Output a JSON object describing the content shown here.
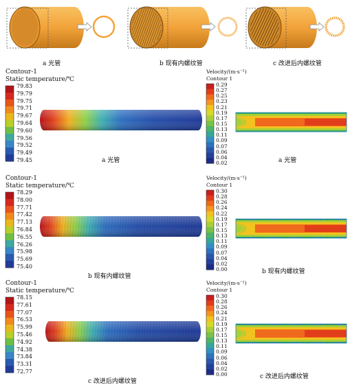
{
  "top_row": {
    "captions": [
      "a 光管",
      "b 现有内螺纹管",
      "c 改进后内螺纹管"
    ]
  },
  "panels": [
    {
      "temp_legend": {
        "title_line1": "Contour-1",
        "title_line2": "Static temperature/℃",
        "ticks": [
          "79.83",
          "79.79",
          "79.75",
          "79.71",
          "79.67",
          "79.64",
          "79.60",
          "79.56",
          "79.52",
          "79.49",
          "79.45"
        ]
      },
      "temp_caption": "a 光管",
      "vel_legend": {
        "title_line1": "Velocity/(m·s⁻¹)",
        "title_line2": "Contour 1",
        "ticks": [
          "0.29",
          "0.27",
          "0.25",
          "0.23",
          "0.21",
          "0.19",
          "0.17",
          "0.15",
          "0.13",
          "0.11",
          "0.09",
          "0.07",
          "0.06",
          "0.04",
          "0.02"
        ]
      },
      "vel_caption": "a 光管"
    },
    {
      "temp_legend": {
        "title_line1": "Contour-1",
        "title_line2": "Static temperature/℃",
        "ticks": [
          "78.29",
          "78.00",
          "77.71",
          "77.42",
          "77.13",
          "76.84",
          "76.55",
          "76.26",
          "75.98",
          "75.69",
          "75.40"
        ]
      },
      "temp_caption": "b 现有内螺纹管",
      "vel_legend": {
        "title_line1": "Velocity/(m·s⁻¹)",
        "title_line2": "Contour 1",
        "ticks": [
          "0.30",
          "0.28",
          "0.26",
          "0.24",
          "0.22",
          "0.19",
          "0.17",
          "0.15",
          "0.13",
          "0.11",
          "0.09",
          "0.07",
          "0.04",
          "0.02",
          "0.00"
        ]
      },
      "vel_caption": "b 现有内螺纹管"
    },
    {
      "temp_legend": {
        "title_line1": "Contour-1",
        "title_line2": "Static temperature/℃",
        "ticks": [
          "78.15",
          "77.61",
          "77.07",
          "76.53",
          "75.99",
          "75.46",
          "74.92",
          "74.38",
          "73.84",
          "73.31",
          "72.77"
        ]
      },
      "temp_caption": "c 改进后内螺纹管",
      "vel_legend": {
        "title_line1": "Velocity/(m·s⁻¹)",
        "title_line2": "Contour 1",
        "ticks": [
          "0.30",
          "0.28",
          "0.26",
          "0.24",
          "0.21",
          "0.19",
          "0.17",
          "0.15",
          "0.13",
          "0.11",
          "0.09",
          "0.06",
          "0.04",
          "0.02",
          "0.00"
        ]
      },
      "vel_caption": "c 改进后内螺纹管"
    }
  ],
  "colors": {
    "tube_orange": "#f2a33a",
    "tube_dark": "#c77a1c",
    "hot": "#c81e1e",
    "cold": "#1f3c9e"
  }
}
